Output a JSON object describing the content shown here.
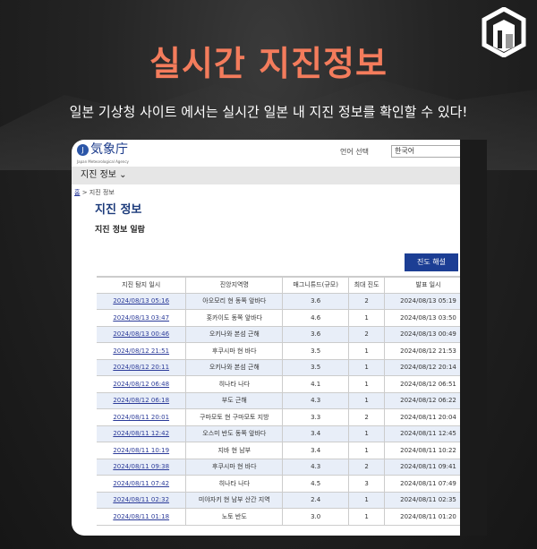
{
  "headline": "실시간 지진정보",
  "subheadline": "일본 기상청 사이트 에서는 실시간 일본 내 지진 정보를 확인할 수 있다!",
  "colors": {
    "headline": "#f47c5c",
    "button": "#1c3e94",
    "link": "#2b3b99"
  },
  "site": {
    "logo_text": "気象庁",
    "logo_sub": "Japan Meteorological Agency",
    "lang_label": "언어 선택",
    "lang_value": "한국어",
    "nav": "지진 정보",
    "breadcrumb_home": "홈",
    "breadcrumb_current": "> 지진 정보",
    "page_title": "지진 정보",
    "section_title": "지진 정보 일람",
    "button": "진도 해설",
    "columns": [
      "지진 탐지 일시",
      "진앙지역명",
      "매그니튜드(규모)",
      "최대 진도",
      "발표 일시"
    ],
    "rows": [
      [
        "2024/08/13 05:16",
        "아오모리 현 동쪽 앞바다",
        "3.6",
        "2",
        "2024/08/13 05:19"
      ],
      [
        "2024/08/13 03:47",
        "홋카이도 동쪽 앞바다",
        "4.6",
        "1",
        "2024/08/13 03:50"
      ],
      [
        "2024/08/13 00:46",
        "오키나와 본섬 근해",
        "3.6",
        "2",
        "2024/08/13 00:49"
      ],
      [
        "2024/08/12 21:51",
        "후쿠시마 현 바다",
        "3.5",
        "1",
        "2024/08/12 21:53"
      ],
      [
        "2024/08/12 20:11",
        "오키나와 본섬 근해",
        "3.5",
        "1",
        "2024/08/12 20:14"
      ],
      [
        "2024/08/12 06:48",
        "히나타 나다",
        "4.1",
        "1",
        "2024/08/12 06:51"
      ],
      [
        "2024/08/12 06:18",
        "부도 근해",
        "4.3",
        "1",
        "2024/08/12 06:22"
      ],
      [
        "2024/08/11 20:01",
        "구마모토 현 구마모토 지방",
        "3.3",
        "2",
        "2024/08/11 20:04"
      ],
      [
        "2024/08/11 12:42",
        "오스미 반도 동쪽 앞바다",
        "3.4",
        "1",
        "2024/08/11 12:45"
      ],
      [
        "2024/08/11 10:19",
        "지바 현 남부",
        "3.4",
        "1",
        "2024/08/11 10:22"
      ],
      [
        "2024/08/11 09:38",
        "후쿠시마 현 바다",
        "4.3",
        "2",
        "2024/08/11 09:41"
      ],
      [
        "2024/08/11 07:42",
        "히나타 나다",
        "4.5",
        "3",
        "2024/08/11 07:49"
      ],
      [
        "2024/08/11 02:32",
        "미야자키 현 남부 산간 지역",
        "2.4",
        "1",
        "2024/08/11 02:35"
      ],
      [
        "2024/08/11 01:18",
        "노토 반도",
        "3.0",
        "1",
        "2024/08/11 01:20"
      ]
    ]
  }
}
